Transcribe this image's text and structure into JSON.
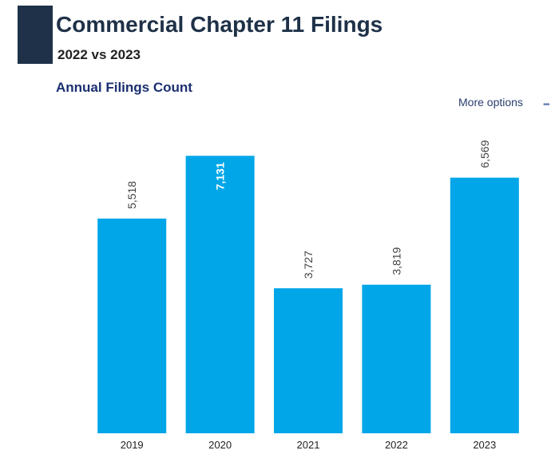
{
  "header": {
    "title": "Commercial Chapter 11 Filings",
    "subtitle": "2022 vs 2023"
  },
  "chart_header": {
    "title": "Annual Filings Count",
    "more_options_label": "More options",
    "more_options_icon": "more-options-icon"
  },
  "colors": {
    "accent_block": "#1e3148",
    "bar": "#00a6e8",
    "title": "#1e3148",
    "chart_title": "#1a2f6f"
  },
  "chart_data": {
    "type": "bar",
    "title": "Annual Filings Count",
    "categories": [
      "2019",
      "2020",
      "2021",
      "2022",
      "2023"
    ],
    "values": [
      5518,
      7131,
      3727,
      3819,
      6569
    ],
    "value_labels": [
      "5,518",
      "7,131",
      "3,727",
      "3,819",
      "6,569"
    ],
    "inside_label_indices": [
      1
    ],
    "xlabel": "",
    "ylabel": "",
    "ylim": [
      0,
      7300
    ],
    "grid": false,
    "legend": "none"
  }
}
